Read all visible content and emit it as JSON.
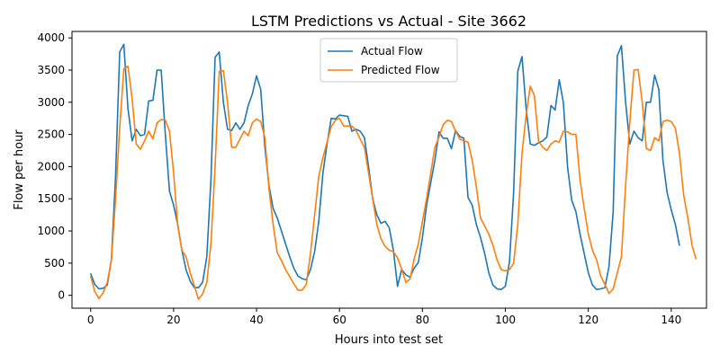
{
  "chart_data": {
    "type": "line",
    "title": "LSTM Predictions vs Actual - Site 3662",
    "xlabel": "Hours into test set",
    "ylabel": "Flow per hour",
    "xlim": [
      -4.5,
      148.5
    ],
    "ylim": [
      -200,
      4100
    ],
    "xticks": [
      0,
      20,
      40,
      60,
      80,
      100,
      120,
      140
    ],
    "yticks": [
      0,
      500,
      1000,
      1500,
      2000,
      2500,
      3000,
      3500,
      4000
    ],
    "grid": false,
    "legend_position": "top-center",
    "series": [
      {
        "name": "Actual Flow",
        "color": "#1f77b4",
        "values": [
          340,
          170,
          100,
          110,
          160,
          560,
          1850,
          3780,
          3900,
          2900,
          2400,
          2580,
          2480,
          2500,
          3020,
          3030,
          3500,
          3500,
          2500,
          1620,
          1400,
          1100,
          700,
          400,
          220,
          120,
          120,
          200,
          600,
          1800,
          3700,
          3780,
          3000,
          2580,
          2560,
          2680,
          2580,
          2680,
          2950,
          3130,
          3410,
          3200,
          2300,
          1700,
          1350,
          1200,
          1000,
          800,
          600,
          420,
          300,
          260,
          240,
          400,
          680,
          1150,
          1900,
          2350,
          2750,
          2740,
          2800,
          2790,
          2780,
          2550,
          2580,
          2550,
          2450,
          2000,
          1500,
          1250,
          1120,
          1150,
          1050,
          700,
          140,
          400,
          320,
          280,
          420,
          510,
          900,
          1400,
          1750,
          2100,
          2540,
          2440,
          2440,
          2280,
          2560,
          2470,
          2440,
          1520,
          1400,
          1100,
          900,
          650,
          350,
          160,
          100,
          90,
          140,
          520,
          1600,
          3480,
          3710,
          2900,
          2350,
          2330,
          2370,
          2400,
          2460,
          2950,
          2880,
          3350,
          2990,
          2000,
          1480,
          1300,
          950,
          650,
          350,
          160,
          90,
          100,
          120,
          450,
          1300,
          3720,
          3880,
          3000,
          2350,
          2550,
          2450,
          2400,
          3000,
          3000,
          3420,
          3200,
          2100,
          1600,
          1330,
          1100,
          770
        ]
      },
      {
        "name": "Predicted Flow",
        "color": "#ff7f0e",
        "values": [
          300,
          60,
          -50,
          40,
          200,
          550,
          1500,
          2600,
          3520,
          3560,
          3050,
          2350,
          2270,
          2400,
          2550,
          2430,
          2680,
          2730,
          2720,
          2550,
          1900,
          1080,
          700,
          600,
          350,
          150,
          -60,
          20,
          200,
          800,
          2000,
          3480,
          3490,
          3000,
          2300,
          2300,
          2430,
          2550,
          2480,
          2680,
          2740,
          2700,
          2450,
          1650,
          1100,
          660,
          540,
          400,
          290,
          180,
          80,
          80,
          170,
          650,
          1250,
          1850,
          2140,
          2380,
          2620,
          2720,
          2750,
          2630,
          2630,
          2630,
          2560,
          2430,
          2300,
          1900,
          1500,
          1100,
          880,
          760,
          700,
          680,
          580,
          410,
          200,
          250,
          560,
          800,
          1150,
          1500,
          1900,
          2300,
          2460,
          2650,
          2720,
          2700,
          2550,
          2430,
          2400,
          2380,
          2100,
          1680,
          1200,
          1080,
          950,
          780,
          550,
          400,
          380,
          400,
          500,
          1100,
          2200,
          2800,
          3250,
          3100,
          2400,
          2300,
          2250,
          2350,
          2400,
          2380,
          2550,
          2540,
          2500,
          2500,
          1800,
          1350,
          950,
          700,
          550,
          300,
          170,
          30,
          100,
          350,
          600,
          1700,
          2700,
          3500,
          3510,
          3000,
          2280,
          2250,
          2450,
          2400,
          2700,
          2720,
          2700,
          2600,
          2200,
          1550,
          1200,
          780,
          560
        ]
      }
    ]
  }
}
